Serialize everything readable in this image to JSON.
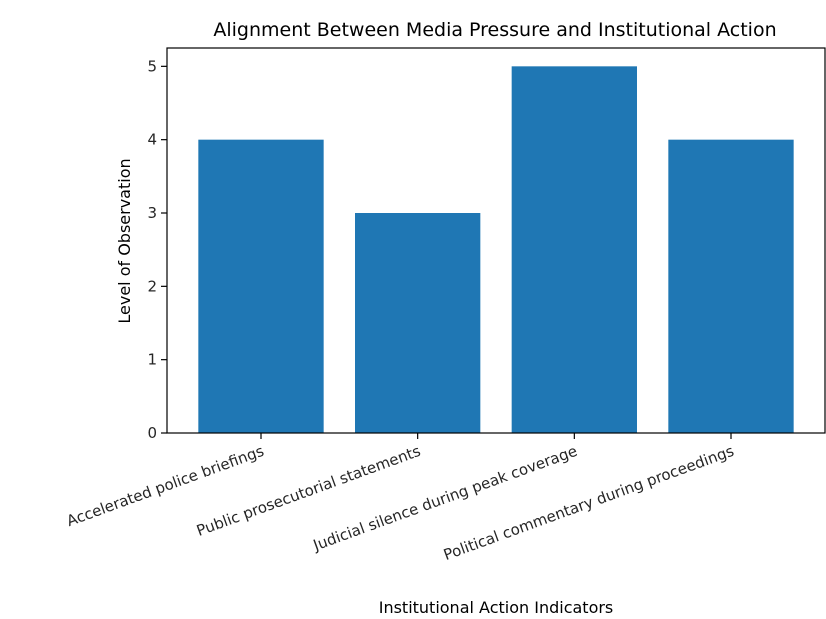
{
  "chart_data": {
    "type": "bar",
    "title": "Alignment Between Media Pressure and Institutional Action",
    "xlabel": "Institutional Action Indicators",
    "ylabel": "Level of Observation",
    "categories": [
      "Accelerated police briefings",
      "Public prosecutorial statements",
      "Judicial silence during peak coverage",
      "Political commentary during proceedings"
    ],
    "values": [
      4,
      3,
      5,
      4
    ],
    "ylim": [
      0,
      5.25
    ],
    "yticks": [
      0,
      1,
      2,
      3,
      4,
      5
    ],
    "bar_color": "#1f77b4",
    "grid": false,
    "legend": "none"
  }
}
